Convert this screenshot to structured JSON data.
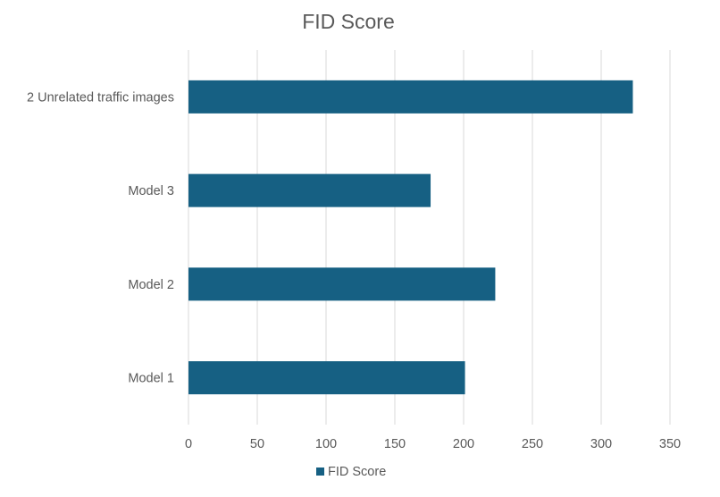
{
  "chart_data": {
    "type": "bar",
    "orientation": "horizontal",
    "title": "FID Score",
    "categories": [
      "2 Unrelated traffic images",
      "Model 3",
      "Model 2",
      "Model 1"
    ],
    "series": [
      {
        "name": "FID Score",
        "values": [
          323,
          176,
          223,
          201
        ]
      }
    ],
    "xlim": [
      0,
      350
    ],
    "xticks": [
      0,
      50,
      100,
      150,
      200,
      250,
      300,
      350
    ],
    "grid": "vertical",
    "legend": "bottom",
    "colors": {
      "bar": "#166083",
      "text": "#595959",
      "grid": "#d9d9d9"
    }
  }
}
